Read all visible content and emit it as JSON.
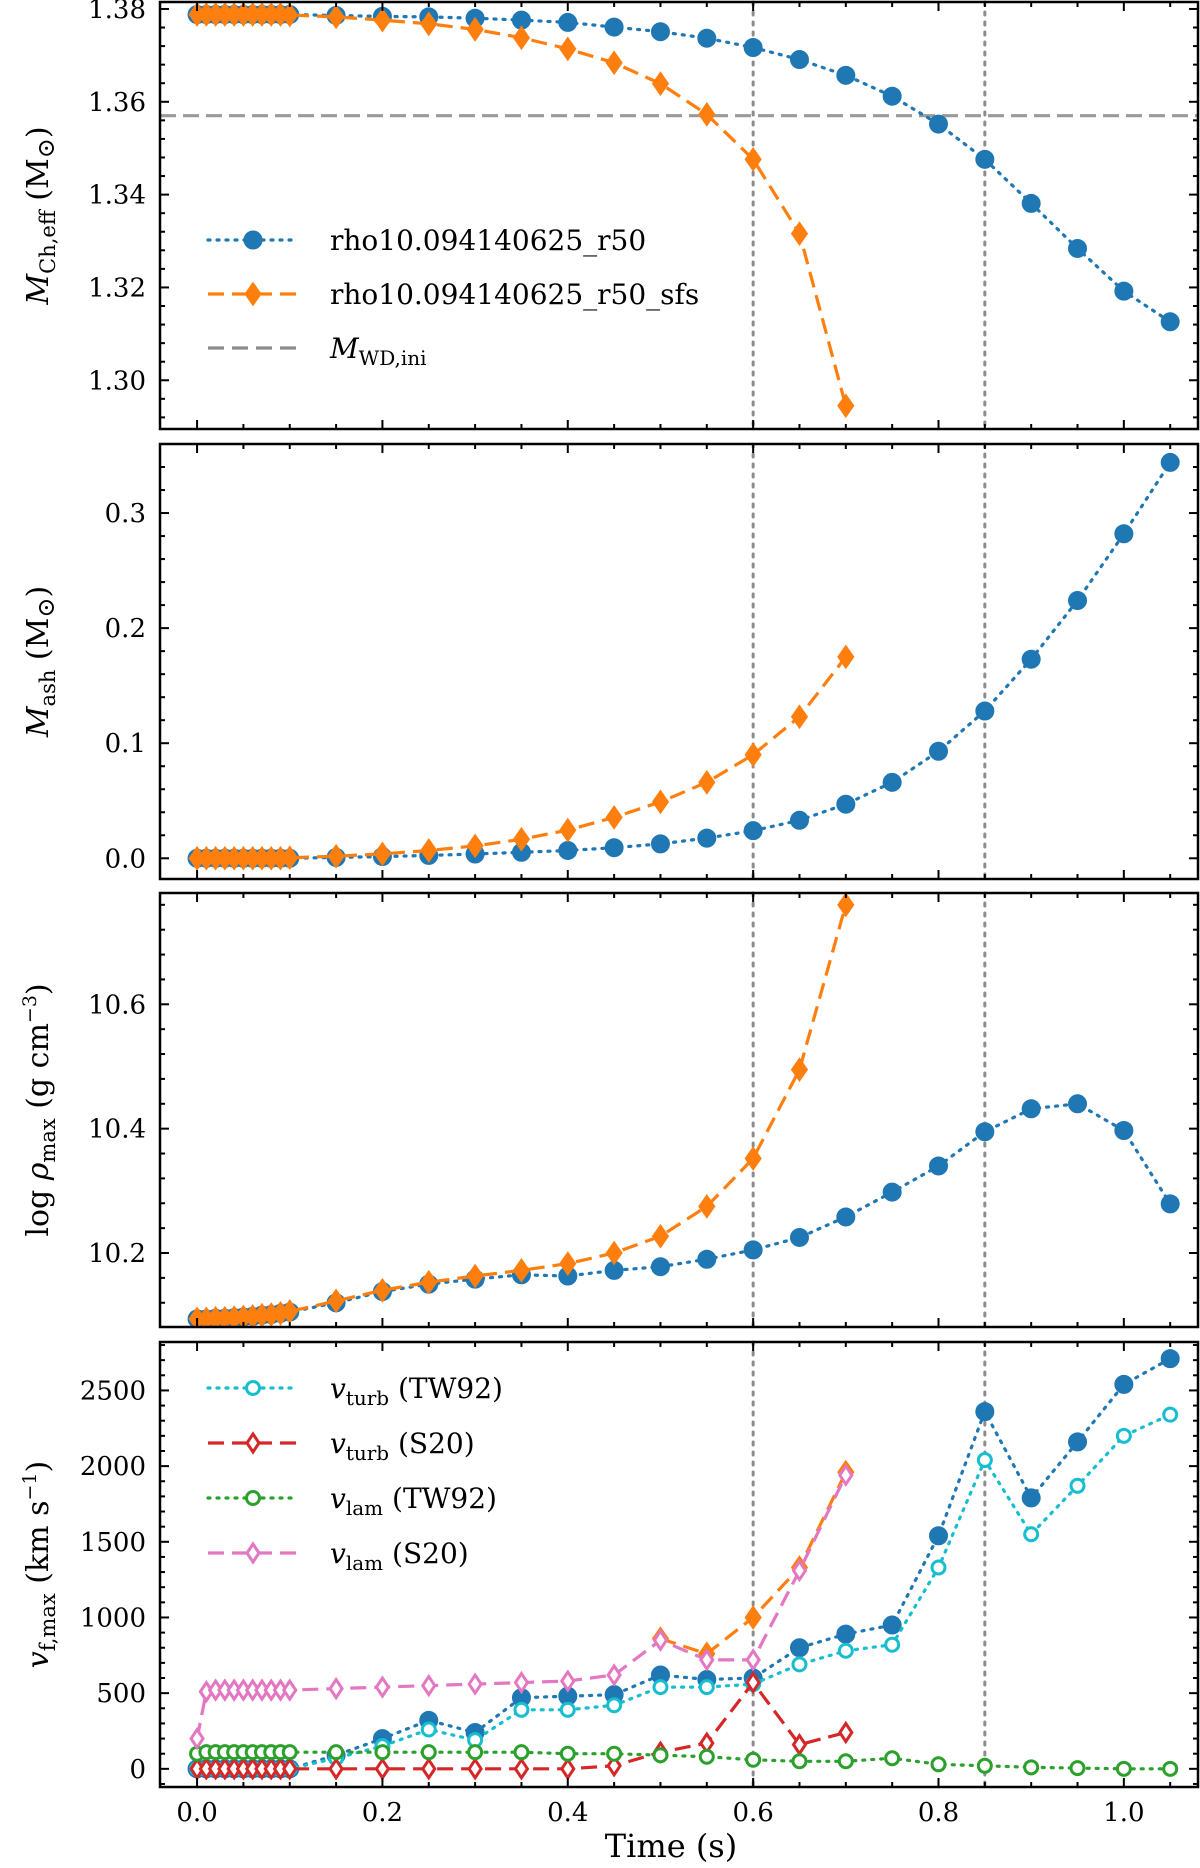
{
  "chart_data": {
    "type": "line",
    "shared_xlabel": "Time (s)",
    "xlim": [
      -0.04,
      1.08
    ],
    "xticks": [
      0.0,
      0.2,
      0.4,
      0.6,
      0.8,
      1.0
    ],
    "xtick_labels": [
      "0.0",
      "0.2",
      "0.4",
      "0.6",
      "0.8",
      "1.0"
    ],
    "vertical_markers": [
      0.6,
      0.85
    ],
    "colors": {
      "blue": "#1f77b4",
      "orange": "#ff7f0e",
      "cyan": "#17becf",
      "red": "#d62728",
      "green": "#2ca02c",
      "pink": "#e377c2",
      "gray": "#8c8c8c"
    },
    "panels": [
      {
        "id": "mch",
        "ylabel": "M_Ch,eff (M_sun)",
        "ylabel_parts": {
          "symbol": "M",
          "sub": "Ch,eff",
          "unit": "(M",
          "unit_end": ")",
          "sun": "⊙"
        },
        "ylim": [
          1.2895,
          1.3815
        ],
        "yticks": [
          1.3,
          1.32,
          1.34,
          1.36,
          1.38
        ],
        "ytick_labels": [
          "1.30",
          "1.32",
          "1.34",
          "1.36",
          "1.38"
        ],
        "hline": 1.357,
        "series": [
          {
            "name": "rho10.094140625_r50",
            "color": "blue",
            "marker": "circle",
            "line": "dotted",
            "x": [
              0.0,
              0.01,
              0.02,
              0.03,
              0.04,
              0.05,
              0.06,
              0.07,
              0.08,
              0.09,
              0.1,
              0.15,
              0.2,
              0.25,
              0.3,
              0.35,
              0.4,
              0.45,
              0.5,
              0.55,
              0.6,
              0.65,
              0.7,
              0.75,
              0.8,
              0.85,
              0.9,
              0.95,
              1.0,
              1.05
            ],
            "y": [
              1.3788,
              1.3788,
              1.3788,
              1.3788,
              1.3788,
              1.3788,
              1.3788,
              1.3788,
              1.3788,
              1.3788,
              1.3788,
              1.3786,
              1.3784,
              1.3783,
              1.378,
              1.3776,
              1.3771,
              1.3761,
              1.3751,
              1.3737,
              1.3717,
              1.3691,
              1.3657,
              1.3612,
              1.3552,
              1.3476,
              1.3381,
              1.3284,
              1.3192,
              1.3126
            ]
          },
          {
            "name": "rho10.094140625_r50_sfs",
            "color": "orange",
            "marker": "diamond",
            "line": "dashed",
            "x": [
              0.0,
              0.01,
              0.02,
              0.03,
              0.04,
              0.05,
              0.06,
              0.07,
              0.08,
              0.09,
              0.1,
              0.15,
              0.2,
              0.25,
              0.3,
              0.35,
              0.4,
              0.45,
              0.5,
              0.55,
              0.6,
              0.65,
              0.7
            ],
            "y": [
              1.3788,
              1.3788,
              1.3788,
              1.3788,
              1.3788,
              1.3788,
              1.3788,
              1.3788,
              1.3788,
              1.3788,
              1.3787,
              1.3783,
              1.3776,
              1.3768,
              1.3756,
              1.3738,
              1.3714,
              1.3684,
              1.3639,
              1.3573,
              1.3476,
              1.3316,
              1.2945
            ]
          }
        ],
        "legend": {
          "position": "middle-left",
          "entries": [
            {
              "label": "rho10.094140625_r50",
              "label_base": "rho10.094140625",
              "label_sub": "r50",
              "label_sub2": "",
              "color": "blue",
              "marker": "circle",
              "line": "dotted"
            },
            {
              "label": "rho10.094140625_r50_sfs",
              "label_base": "rho10.094140625",
              "label_sub": "r50",
              "label_sub2": "sfs",
              "color": "orange",
              "marker": "diamond",
              "line": "dashed"
            },
            {
              "label": "M_WD,ini",
              "symbol": "M",
              "sub": "WD,ini",
              "color": "gray",
              "marker": "none",
              "line": "dashed"
            }
          ]
        }
      },
      {
        "id": "mash",
        "ylabel": "M_ash (M_sun)",
        "ylabel_parts": {
          "symbol": "M",
          "sub": "ash",
          "unit": "(M",
          "unit_end": ")",
          "sun": "⊙"
        },
        "ylim": [
          -0.018,
          0.36
        ],
        "yticks": [
          0.0,
          0.1,
          0.2,
          0.3
        ],
        "ytick_labels": [
          "0.0",
          "0.1",
          "0.2",
          "0.3"
        ],
        "series": [
          {
            "name": "rho10.094140625_r50",
            "color": "blue",
            "marker": "circle",
            "line": "dotted",
            "x": [
              0.0,
              0.01,
              0.02,
              0.03,
              0.04,
              0.05,
              0.06,
              0.07,
              0.08,
              0.09,
              0.1,
              0.15,
              0.2,
              0.25,
              0.3,
              0.35,
              0.4,
              0.45,
              0.5,
              0.55,
              0.6,
              0.65,
              0.7,
              0.75,
              0.8,
              0.85,
              0.9,
              0.95,
              1.0,
              1.05
            ],
            "y": [
              0.0,
              0.0,
              0.0,
              0.0,
              0.0,
              0.0,
              0.0,
              0.0,
              0.0,
              0.0,
              0.0,
              0.0008,
              0.0015,
              0.0025,
              0.0037,
              0.0052,
              0.0068,
              0.0092,
              0.0125,
              0.0175,
              0.024,
              0.033,
              0.047,
              0.066,
              0.093,
              0.128,
              0.173,
              0.224,
              0.282,
              0.344
            ]
          },
          {
            "name": "rho10.094140625_r50_sfs",
            "color": "orange",
            "marker": "diamond",
            "line": "dashed",
            "x": [
              0.0,
              0.01,
              0.02,
              0.03,
              0.04,
              0.05,
              0.06,
              0.07,
              0.08,
              0.09,
              0.1,
              0.15,
              0.2,
              0.25,
              0.3,
              0.35,
              0.4,
              0.45,
              0.5,
              0.55,
              0.6,
              0.65,
              0.7
            ],
            "y": [
              0.0,
              0.0,
              0.0,
              0.0,
              0.0,
              0.0,
              0.0,
              0.0,
              0.0,
              0.0,
              0.0005,
              0.0018,
              0.0038,
              0.0068,
              0.0108,
              0.0165,
              0.0245,
              0.0355,
              0.049,
              0.066,
              0.09,
              0.123,
              0.175
            ]
          }
        ]
      },
      {
        "id": "rho",
        "ylabel": "log rho_max (g cm^-3)",
        "ylabel_parts": {
          "prefix": "log ",
          "symbol": "ρ",
          "sub": "max",
          "unit": "(g cm",
          "sup": "−3",
          "unit_end": ")"
        },
        "ylim": [
          10.081,
          10.779
        ],
        "yticks": [
          10.2,
          10.4,
          10.6
        ],
        "ytick_labels": [
          "10.2",
          "10.4",
          "10.6"
        ],
        "series": [
          {
            "name": "rho10.094140625_r50",
            "color": "blue",
            "marker": "circle",
            "line": "dotted",
            "x": [
              0.0,
              0.01,
              0.02,
              0.03,
              0.04,
              0.05,
              0.06,
              0.07,
              0.08,
              0.09,
              0.1,
              0.15,
              0.2,
              0.25,
              0.3,
              0.35,
              0.4,
              0.45,
              0.5,
              0.55,
              0.6,
              0.65,
              0.7,
              0.75,
              0.8,
              0.85,
              0.9,
              0.95,
              1.0,
              1.05
            ],
            "y": [
              10.094,
              10.094,
              10.095,
              10.095,
              10.096,
              10.097,
              10.098,
              10.1,
              10.101,
              10.103,
              10.105,
              10.12,
              10.138,
              10.15,
              10.158,
              10.165,
              10.163,
              10.172,
              10.178,
              10.19,
              10.205,
              10.225,
              10.258,
              10.298,
              10.34,
              10.395,
              10.432,
              10.44,
              10.397,
              10.279
            ]
          },
          {
            "name": "rho10.094140625_r50_sfs",
            "color": "orange",
            "marker": "diamond",
            "line": "dashed",
            "x": [
              0.0,
              0.01,
              0.02,
              0.03,
              0.04,
              0.05,
              0.06,
              0.07,
              0.08,
              0.09,
              0.1,
              0.15,
              0.2,
              0.25,
              0.3,
              0.35,
              0.4,
              0.45,
              0.5,
              0.55,
              0.6,
              0.65,
              0.7
            ],
            "y": [
              10.094,
              10.094,
              10.095,
              10.095,
              10.096,
              10.097,
              10.098,
              10.1,
              10.101,
              10.103,
              10.106,
              10.123,
              10.14,
              10.153,
              10.163,
              10.172,
              10.183,
              10.2,
              10.227,
              10.275,
              10.352,
              10.495,
              10.76
            ]
          }
        ]
      },
      {
        "id": "vf",
        "ylabel": "v_f,max (km s^-1)",
        "ylabel_parts": {
          "symbol": "v",
          "sub": "f,max",
          "unit": "(km s",
          "sup": "−1",
          "unit_end": ")"
        },
        "ylim": [
          -120,
          2820
        ],
        "yticks": [
          0,
          500,
          1000,
          1500,
          2000,
          2500
        ],
        "ytick_labels": [
          "0",
          "500",
          "1000",
          "1500",
          "2000",
          "2500"
        ],
        "series": [
          {
            "name": "rho10.094140625_r50",
            "color": "blue",
            "marker": "circle",
            "line": "dotted",
            "x": [
              0.0,
              0.01,
              0.02,
              0.03,
              0.04,
              0.05,
              0.06,
              0.07,
              0.08,
              0.09,
              0.1,
              0.15,
              0.2,
              0.25,
              0.3,
              0.35,
              0.4,
              0.45,
              0.5,
              0.55,
              0.6,
              0.65,
              0.7,
              0.75,
              0.8,
              0.85,
              0.9,
              0.95,
              1.0,
              1.05
            ],
            "y": [
              0,
              0,
              0,
              0,
              0,
              0,
              0,
              0,
              0,
              0,
              0,
              90,
              200,
              320,
              240,
              470,
              480,
              490,
              620,
              590,
              600,
              800,
              890,
              950,
              1540,
              2360,
              1790,
              2160,
              2540,
              2710
            ]
          },
          {
            "name": "rho10.094140625_r50_sfs",
            "color": "orange",
            "marker": "diamond",
            "line": "dashed",
            "x": [
              0.5,
              0.55,
              0.6,
              0.65,
              0.7
            ],
            "y": [
              860,
              760,
              1000,
              1330,
              1960
            ]
          },
          {
            "name": "v_turb (TW92)",
            "color": "cyan",
            "marker": "open-circle",
            "line": "dotted",
            "x": [
              0.0,
              0.01,
              0.02,
              0.03,
              0.04,
              0.05,
              0.06,
              0.07,
              0.08,
              0.09,
              0.1,
              0.15,
              0.2,
              0.25,
              0.3,
              0.35,
              0.4,
              0.45,
              0.5,
              0.55,
              0.6,
              0.65,
              0.7,
              0.75,
              0.8,
              0.85,
              0.9,
              0.95,
              1.0,
              1.05
            ],
            "y": [
              0,
              0,
              0,
              0,
              0,
              0,
              0,
              0,
              0,
              0,
              0,
              70,
              150,
              260,
              190,
              390,
              390,
              420,
              540,
              540,
              560,
              690,
              780,
              820,
              1330,
              2040,
              1550,
              1870,
              2200,
              2340
            ]
          },
          {
            "name": "v_turb (S20)",
            "color": "red",
            "marker": "open-diamond",
            "line": "dashed",
            "x": [
              0.0,
              0.01,
              0.02,
              0.03,
              0.04,
              0.05,
              0.06,
              0.07,
              0.08,
              0.09,
              0.1,
              0.15,
              0.2,
              0.25,
              0.3,
              0.35,
              0.4,
              0.45,
              0.5,
              0.55,
              0.6,
              0.65,
              0.7
            ],
            "y": [
              0,
              0,
              0,
              0,
              0,
              0,
              0,
              0,
              0,
              0,
              0,
              0,
              0,
              0,
              0,
              0,
              0,
              20,
              110,
              170,
              570,
              160,
              240
            ]
          },
          {
            "name": "v_lam (TW92)",
            "color": "green",
            "marker": "open-circle",
            "line": "dotted",
            "x": [
              0.0,
              0.01,
              0.02,
              0.03,
              0.04,
              0.05,
              0.06,
              0.07,
              0.08,
              0.09,
              0.1,
              0.15,
              0.2,
              0.25,
              0.3,
              0.35,
              0.4,
              0.45,
              0.5,
              0.55,
              0.6,
              0.65,
              0.7,
              0.75,
              0.8,
              0.85,
              0.9,
              0.95,
              1.0,
              1.05
            ],
            "y": [
              100,
              110,
              110,
              110,
              110,
              110,
              110,
              110,
              110,
              110,
              110,
              110,
              110,
              110,
              110,
              110,
              100,
              100,
              90,
              80,
              60,
              50,
              50,
              70,
              30,
              20,
              10,
              5,
              0,
              0
            ]
          },
          {
            "name": "v_lam (S20)",
            "color": "pink",
            "marker": "open-diamond",
            "line": "dashed",
            "x": [
              0.0,
              0.01,
              0.02,
              0.03,
              0.04,
              0.05,
              0.06,
              0.07,
              0.08,
              0.09,
              0.1,
              0.15,
              0.2,
              0.25,
              0.3,
              0.35,
              0.4,
              0.45,
              0.5,
              0.55,
              0.6,
              0.65,
              0.7
            ],
            "y": [
              200,
              510,
              520,
              520,
              520,
              520,
              520,
              520,
              520,
              520,
              520,
              530,
              540,
              550,
              560,
              570,
              580,
              620,
              850,
              720,
              720,
              1310,
              1940
            ]
          }
        ],
        "legend": {
          "position": "top-left",
          "entries": [
            {
              "label": "v_turb (TW92)",
              "symbol": "v",
              "sub": "turb",
              "suffix": " (TW92)",
              "color": "cyan",
              "marker": "open-circle",
              "line": "dotted"
            },
            {
              "label": "v_turb (S20)",
              "symbol": "v",
              "sub": "turb",
              "suffix": " (S20)",
              "color": "red",
              "marker": "open-diamond",
              "line": "dashed"
            },
            {
              "label": "v_lam (TW92)",
              "symbol": "v",
              "sub": "lam",
              "suffix": " (TW92)",
              "color": "green",
              "marker": "open-circle",
              "line": "dotted"
            },
            {
              "label": "v_lam (S20)",
              "symbol": "v",
              "sub": "lam",
              "suffix": " (S20)",
              "color": "pink",
              "marker": "open-diamond",
              "line": "dashed"
            }
          ]
        }
      }
    ]
  }
}
